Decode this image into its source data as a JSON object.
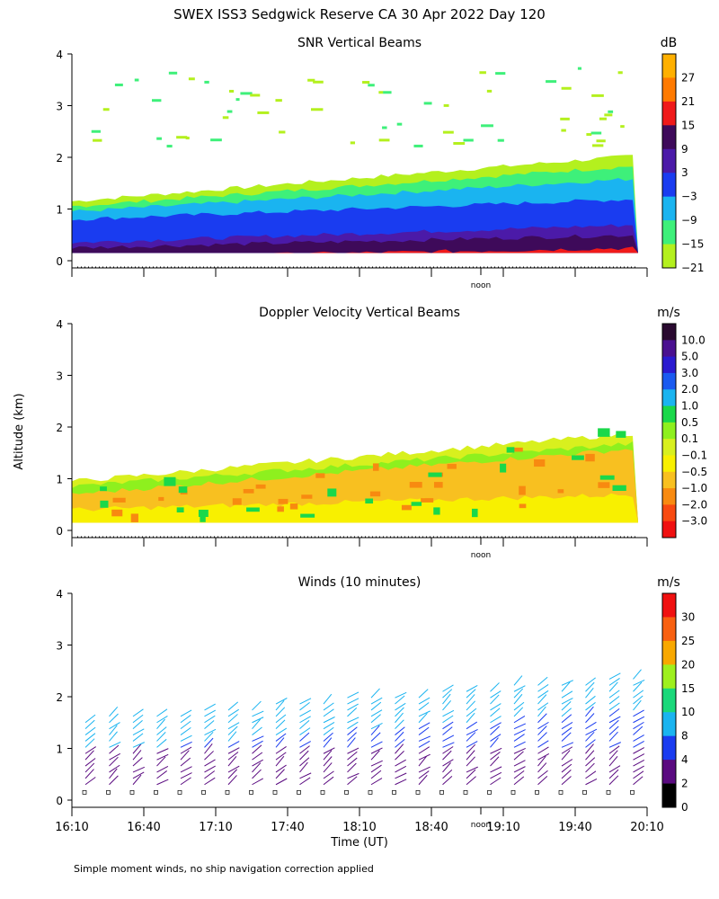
{
  "title": "SWEX ISS3 Sedgwick Reserve CA  30 Apr 2022 Day 120",
  "shared_ylabel": "Altitude (km)",
  "xlabel": "Time (UT)",
  "footnote": "Simple moment winds, no ship navigation correction applied",
  "noon_label": "noon",
  "x_tick_labels": [
    "16:10",
    "16:40",
    "17:10",
    "17:40",
    "18:10",
    "18:40",
    "19:10",
    "19:40",
    "20:10"
  ],
  "chart_data": [
    {
      "type": "heatmap",
      "title": "SNR Vertical Beams",
      "units": "dB",
      "y_ticks": [
        "0",
        "1",
        "2",
        "3",
        "4"
      ],
      "ylim": [
        0,
        4
      ],
      "colorbar_labels": [
        "27",
        "21",
        "15",
        "9",
        "3",
        "−3",
        "−9",
        "−15",
        "−21"
      ],
      "colorbar_colors": [
        "#ffb000",
        "#ff7a00",
        "#f01a1a",
        "#3e0a5a",
        "#4b1aa8",
        "#1a3cf0",
        "#1ab4f0",
        "#3ef07a",
        "#b4f01e"
      ]
    },
    {
      "type": "heatmap",
      "title": "Doppler Velocity Vertical Beams",
      "units": "m/s",
      "y_ticks": [
        "0",
        "1",
        "2",
        "3",
        "4"
      ],
      "ylim": [
        0,
        4
      ],
      "colorbar_labels": [
        "10.0",
        "5.0",
        "3.0",
        "2.0",
        "1.0",
        "0.5",
        "0.1",
        "−0.1",
        "−0.5",
        "−1.0",
        "−2.0",
        "−3.0"
      ],
      "colorbar_colors": [
        "#2a0a30",
        "#4a1090",
        "#2a1ad0",
        "#1a5af0",
        "#1ab4f0",
        "#1ad84a",
        "#8ef01e",
        "#d8f01e",
        "#f8f000",
        "#f8c020",
        "#f88a10",
        "#f84a10",
        "#f01010"
      ]
    },
    {
      "type": "barbs",
      "title": "Winds (10 minutes)",
      "units": "m/s",
      "y_ticks": [
        "0",
        "1",
        "2",
        "3",
        "4"
      ],
      "ylim": [
        0,
        4
      ],
      "colorbar_labels": [
        "30",
        "25",
        "20",
        "15",
        "10",
        "8",
        "4",
        "2",
        "0"
      ],
      "colorbar_colors": [
        "#f01010",
        "#f86010",
        "#f8a800",
        "#9ef01e",
        "#1ad87a",
        "#1ab4f0",
        "#1a3cf0",
        "#5a0a80",
        "#000000"
      ]
    }
  ]
}
